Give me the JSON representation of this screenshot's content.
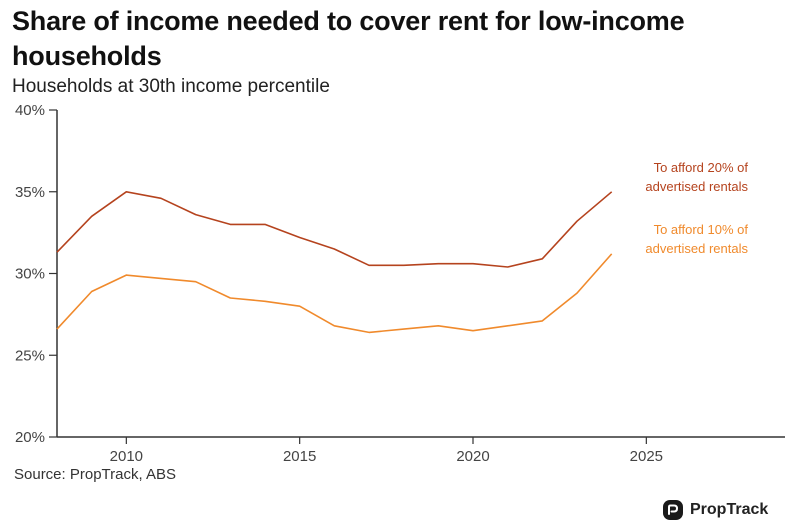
{
  "title": "Share of income needed to cover rent for low-income households",
  "subtitle": "Households at 30th income percentile",
  "source": "Source: PropTrack, ABS",
  "logo_text": "PropTrack",
  "colors": {
    "series_20": "#b5431e",
    "series_10": "#f08a2c",
    "axis": "#333333"
  },
  "chart_data": {
    "type": "line",
    "xlim": [
      2008,
      2029
    ],
    "ylim": [
      20,
      40
    ],
    "x_ticks": [
      2010,
      2015,
      2020,
      2025
    ],
    "y_ticks": [
      20,
      25,
      30,
      35,
      40
    ],
    "y_tick_labels": [
      "20%",
      "25%",
      "30%",
      "35%",
      "40%"
    ],
    "x": [
      2008,
      2009,
      2010,
      2011,
      2012,
      2013,
      2014,
      2015,
      2016,
      2017,
      2018,
      2019,
      2020,
      2021,
      2022,
      2023,
      2024
    ],
    "series": [
      {
        "name_lines": [
          "To afford 20% of",
          "advertised rentals"
        ],
        "color_key": "series_20",
        "values": [
          31.3,
          33.5,
          35.0,
          34.6,
          33.6,
          33.0,
          33.0,
          32.2,
          31.5,
          30.5,
          30.5,
          30.6,
          30.6,
          30.4,
          30.9,
          33.2,
          35.0
        ]
      },
      {
        "name_lines": [
          "To afford 10% of",
          "advertised rentals"
        ],
        "color_key": "series_10",
        "values": [
          26.6,
          28.9,
          29.9,
          29.7,
          29.5,
          28.5,
          28.3,
          28.0,
          26.8,
          26.4,
          26.6,
          26.8,
          26.5,
          26.8,
          27.1,
          28.8,
          31.2
        ]
      }
    ],
    "grid": false,
    "legend": "direct labels at right end of lines"
  }
}
